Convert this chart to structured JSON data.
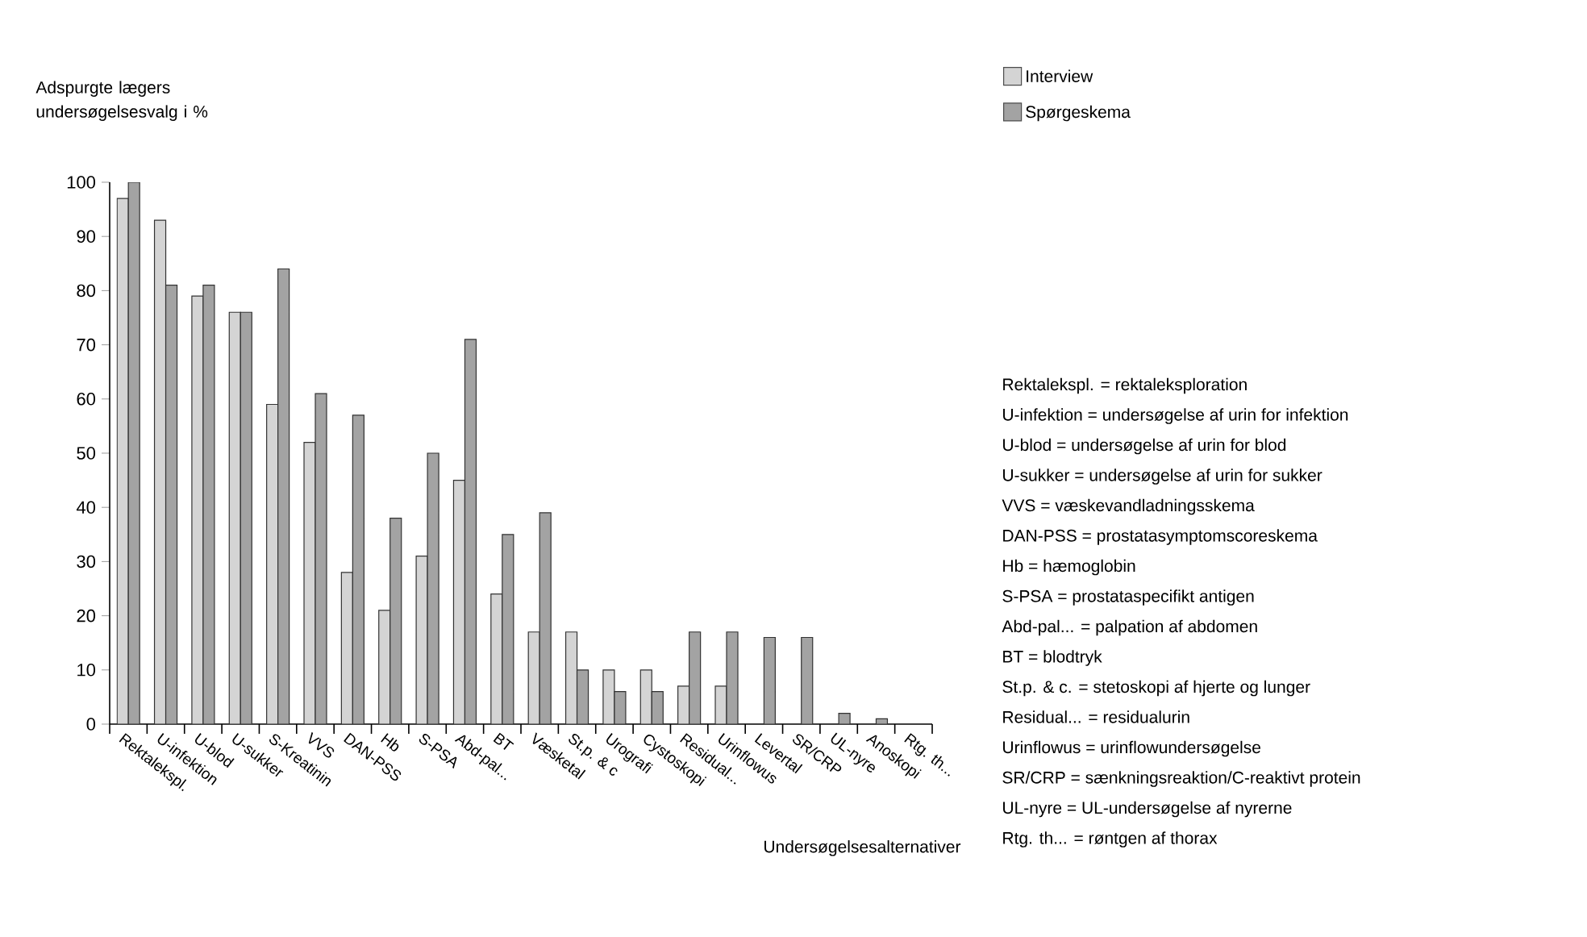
{
  "chart_data": {
    "type": "bar",
    "ylabel": "Adspurgte lægers undersøgelsesvalg i %",
    "xlabel": "Undersøgelsesalternativer",
    "categories": [
      "Rektalekspl.",
      "U-infektion",
      "U-blod",
      "U-sukker",
      "S-Kreatinin",
      "VVS",
      "DAN-PSS",
      "Hb",
      "S-PSA",
      "Abd-pal...",
      "BT",
      "Væsketal",
      "St.p. & c",
      "Urografi",
      "Cystoskopi",
      "Residual...",
      "Urinflowus",
      "Levertal",
      "SR/CRP",
      "UL-nyre",
      "Anoskopi",
      "Rtg. th..."
    ],
    "series": [
      {
        "name": "Interview",
        "color": "#d4d4d4",
        "values": [
          97,
          93,
          79,
          76,
          59,
          52,
          28,
          21,
          31,
          45,
          24,
          17,
          17,
          10,
          10,
          7,
          7,
          null,
          null,
          null,
          null,
          null
        ]
      },
      {
        "name": "Spørgeskema",
        "color": "#a3a3a3",
        "values": [
          100,
          81,
          81,
          76,
          84,
          61,
          57,
          38,
          50,
          71,
          35,
          39,
          10,
          6,
          6,
          17,
          17,
          16,
          16,
          2,
          1,
          null
        ]
      }
    ],
    "ylim": [
      0,
      100
    ],
    "yticks": [
      0,
      10,
      20,
      30,
      40,
      50,
      60,
      70,
      80,
      90,
      100
    ],
    "legend": "top right",
    "annotations": [
      "Rektalekspl. = rektaleksploration",
      "U-infektion = undersøgelse af urin for infektion",
      "U-blod = undersøgelse af urin for blod",
      "U-sukker = undersøgelse af urin for sukker",
      "VVS = væskevandladningsskema",
      "DAN-PSS = prostatasymptomscoreskema",
      "Hb = hæmoglobin",
      "S-PSA = prostataspecifikt antigen",
      "Abd-pal... = palpation af abdomen",
      "BT = blodtryk",
      "St.p. & c. = stetoskopi af hjerte og lunger",
      "Residual... = residualurin",
      "Urinflowus = urinflowundersøgelse",
      "SR/CRP = sænkningsreaktion/C-reaktivt protein",
      "UL-nyre = UL-undersøgelse af nyrerne",
      "Rtg. th... = røntgen af thorax"
    ]
  }
}
